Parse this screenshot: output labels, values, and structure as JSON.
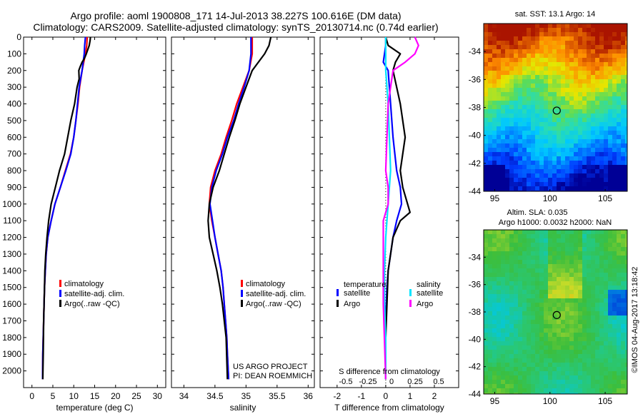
{
  "header": {
    "title_line1": "Argo profile: aoml 1900808_171 14-Jul-2013 38.227S 100.616E (DM data)",
    "title_line2": "Climatology: CARS2009. Satellite-adjusted climatology: synTS_20130714.nc (0.74d earlier)"
  },
  "colors": {
    "climatology": "#ff0000",
    "satellite": "#0000ff",
    "argo": "#000000",
    "salinity_satellite": "#00e5ff",
    "salinity_argo": "#ff00ff"
  },
  "chart_data": [
    {
      "type": "line",
      "name": "temperature-profile",
      "xlabel": "temperature (deg C)",
      "ylabel": "",
      "xlim": [
        -2,
        32
      ],
      "ylim": [
        2100,
        0
      ],
      "y_inverted": true,
      "xticks": [
        0,
        5,
        10,
        15,
        20,
        25,
        30
      ],
      "yticks": [
        0,
        100,
        200,
        300,
        400,
        500,
        600,
        700,
        800,
        900,
        1000,
        1100,
        1200,
        1300,
        1400,
        1500,
        1600,
        1700,
        1800,
        1900,
        2000
      ],
      "legend": [
        "climatology",
        "satellite-adj. clim.",
        "Argo(..raw -QC)"
      ],
      "legend_position": "lower-center",
      "series": [
        {
          "name": "climatology",
          "color": "#ff0000",
          "x": [
            13.2,
            13.1,
            12.8,
            12.0,
            11.4,
            11.0,
            10.5,
            10.0,
            9.2,
            8.0,
            6.8,
            5.5,
            4.6,
            3.8,
            3.4,
            3.2,
            3.0,
            2.9,
            2.8,
            2.7,
            2.6,
            2.55
          ],
          "y": [
            0,
            50,
            100,
            200,
            300,
            400,
            500,
            600,
            700,
            800,
            900,
            1000,
            1100,
            1200,
            1300,
            1400,
            1500,
            1600,
            1700,
            1800,
            1900,
            2050
          ]
        },
        {
          "name": "satellite-adj. clim.",
          "color": "#0000ff",
          "x": [
            12.8,
            12.6,
            12.5,
            12.0,
            11.3,
            10.9,
            10.5,
            10.0,
            9.3,
            8.1,
            6.8,
            5.5,
            4.6,
            3.8,
            3.4,
            3.2,
            3.0,
            2.9,
            2.8,
            2.7,
            2.6,
            2.55
          ],
          "y": [
            0,
            50,
            100,
            200,
            300,
            400,
            500,
            600,
            700,
            800,
            900,
            1000,
            1100,
            1200,
            1300,
            1400,
            1500,
            1600,
            1700,
            1800,
            1900,
            2050
          ]
        },
        {
          "name": "Argo(..raw -QC)",
          "color": "#000000",
          "x": [
            14.0,
            13.9,
            13.7,
            13.0,
            12.5,
            12.0,
            11.5,
            11.2,
            11.3,
            10.8,
            10.2,
            9.3,
            7.8,
            6.6,
            5.6,
            4.6,
            4.0,
            3.6,
            3.3,
            3.1,
            3.0,
            2.8,
            2.7,
            2.6
          ],
          "y": [
            0,
            20,
            50,
            100,
            130,
            150,
            180,
            200,
            250,
            300,
            400,
            500,
            700,
            800,
            900,
            1000,
            1100,
            1200,
            1300,
            1400,
            1500,
            1700,
            1900,
            2050
          ]
        }
      ]
    },
    {
      "type": "line",
      "name": "salinity-profile",
      "xlabel": "salinity",
      "ylabel": "",
      "xlim": [
        33.8,
        36.1
      ],
      "ylim": [
        2100,
        0
      ],
      "y_inverted": true,
      "xticks": [
        34,
        34.5,
        35,
        35.5,
        36
      ],
      "legend": [
        "climatology",
        "satellite-adj. clim.",
        "Argo(..raw -QC)"
      ],
      "legend_position": "lower-center",
      "annotations": [
        "US ARGO PROJECT",
        "PI: DEAN ROEMMICH"
      ],
      "series": [
        {
          "name": "climatology",
          "color": "#ff0000",
          "x": [
            35.1,
            35.1,
            35.05,
            34.95,
            34.85,
            34.77,
            34.68,
            34.6,
            34.5,
            34.43,
            34.41,
            34.45,
            34.5,
            34.55,
            34.6,
            34.63,
            34.65,
            34.67,
            34.69,
            34.7,
            34.72
          ],
          "y": [
            0,
            100,
            200,
            300,
            400,
            500,
            600,
            700,
            800,
            900,
            1000,
            1100,
            1200,
            1300,
            1400,
            1500,
            1600,
            1700,
            1800,
            1900,
            2050
          ]
        },
        {
          "name": "satellite-adj. clim.",
          "color": "#0000ff",
          "x": [
            35.08,
            35.08,
            35.05,
            34.97,
            34.88,
            34.8,
            34.7,
            34.62,
            34.52,
            34.45,
            34.42,
            34.46,
            34.5,
            34.55,
            34.6,
            34.63,
            34.65,
            34.67,
            34.69,
            34.7,
            34.72
          ],
          "y": [
            0,
            100,
            200,
            300,
            400,
            500,
            600,
            700,
            800,
            900,
            1000,
            1100,
            1200,
            1300,
            1400,
            1500,
            1600,
            1700,
            1800,
            1900,
            2050
          ]
        },
        {
          "name": "Argo(..raw -QC)",
          "color": "#000000",
          "x": [
            35.4,
            35.37,
            35.3,
            35.1,
            35.0,
            34.9,
            34.82,
            34.73,
            34.65,
            34.57,
            34.47,
            34.41,
            34.39,
            34.41,
            34.47,
            34.53,
            34.58,
            34.62,
            34.65,
            34.68,
            34.7
          ],
          "y": [
            0,
            50,
            100,
            200,
            300,
            400,
            500,
            600,
            700,
            800,
            900,
            1000,
            1100,
            1200,
            1300,
            1400,
            1500,
            1600,
            1700,
            1800,
            2050
          ]
        }
      ]
    },
    {
      "type": "line",
      "name": "difference-profile",
      "xlabel": "T difference from climatology",
      "xlabel_top": "S difference from climatology",
      "ylabel": "",
      "xlim": [
        -2.7,
        3.0
      ],
      "ylim": [
        2100,
        0
      ],
      "y_inverted": true,
      "xticks": [
        -2,
        -1,
        0,
        1,
        2
      ],
      "xticks_top": [
        "-0.5",
        "-0.25",
        "0",
        "0.25",
        "0.5"
      ],
      "legend_title_left": "temperature",
      "legend_title_right": "salinity",
      "legend": [
        "satellite",
        "Argo",
        "satellite",
        "Argo"
      ],
      "legend_position": "lower-center",
      "series": [
        {
          "name": "satellite",
          "group": "temperature",
          "color": "#0000ff",
          "x": [
            0.0,
            0.0,
            -0.05,
            -0.1,
            0.1,
            0.2,
            0.3,
            0.45,
            0.6,
            0.65,
            0.55,
            0.45,
            0.3,
            0.2,
            0.1,
            0.05,
            0.0,
            0.0,
            0.0
          ],
          "y": [
            0,
            50,
            100,
            150,
            200,
            400,
            600,
            800,
            900,
            1000,
            1050,
            1100,
            1200,
            1300,
            1400,
            1500,
            1700,
            1900,
            2050
          ]
        },
        {
          "name": "Argo",
          "group": "temperature",
          "color": "#000000",
          "x": [
            0.0,
            0.1,
            0.6,
            0.4,
            0.3,
            0.6,
            0.8,
            0.6,
            0.7,
            0.9,
            1.0,
            0.6,
            0.3,
            0.1,
            0.05,
            0.0,
            0.0
          ],
          "y": [
            0,
            50,
            100,
            150,
            200,
            400,
            600,
            800,
            900,
            1000,
            1050,
            1100,
            1200,
            1400,
            1600,
            1800,
            2050
          ]
        },
        {
          "name": "satellite",
          "group": "salinity",
          "color": "#00e5ff",
          "x": [
            0.0,
            0.0,
            0.0,
            0.1,
            0.15,
            0.2,
            0.1,
            0.0,
            -0.05,
            -0.05,
            0.0,
            0.0
          ],
          "y": [
            0,
            100,
            200,
            400,
            600,
            800,
            1000,
            1200,
            1400,
            1600,
            1800,
            2050
          ]
        },
        {
          "name": "Argo",
          "group": "salinity",
          "color": "#ff00ff",
          "x": [
            1.2,
            1.35,
            1.2,
            0.8,
            0.3,
            0.1,
            0.0,
            0.1,
            0.1,
            0.0,
            -0.1,
            -0.1,
            -0.1,
            0.0
          ],
          "y": [
            0,
            50,
            100,
            150,
            200,
            400,
            800,
            900,
            1000,
            1050,
            1100,
            1300,
            1600,
            2050
          ]
        }
      ]
    },
    {
      "type": "heatmap",
      "name": "sst-map",
      "title": "sat. SST: 13.1  Argo: 14",
      "xlim": [
        94,
        107
      ],
      "ylim": [
        -44,
        -32
      ],
      "xticks": [
        95,
        100,
        105
      ],
      "yticks": [
        -34,
        -36,
        -38,
        -40,
        -42,
        -44
      ],
      "marker": {
        "lon": 100.616,
        "lat": -38.227
      }
    },
    {
      "type": "heatmap",
      "name": "sla-map",
      "title": "Altim. SLA: 0.035",
      "subtitle": "Argo h1000: 0.0032 h2000: NaN",
      "xlim": [
        94,
        107
      ],
      "ylim": [
        -44,
        -32
      ],
      "xticks": [
        95,
        100,
        105
      ],
      "yticks": [
        -34,
        -36,
        -38,
        -40,
        -42,
        -44
      ],
      "marker": {
        "lon": 100.616,
        "lat": -38.227
      }
    }
  ],
  "footer": {
    "credit": "©IMOS 04-Aug-2017 13:18:42"
  }
}
